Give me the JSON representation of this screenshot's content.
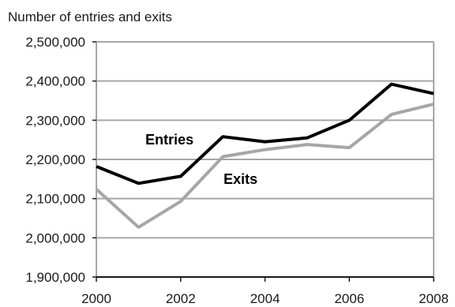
{
  "chart_data": {
    "type": "line",
    "title": "Number of entries and exits",
    "xlabel": "",
    "ylabel": "",
    "x": [
      2000,
      2001,
      2002,
      2003,
      2004,
      2005,
      2006,
      2007,
      2008
    ],
    "xlim": [
      2000,
      2008
    ],
    "xticks": [
      2000,
      2002,
      2004,
      2006,
      2008
    ],
    "xtick_labels": [
      "2000",
      "2002",
      "2004",
      "2006",
      "2008"
    ],
    "ylim": [
      1900000,
      2500000
    ],
    "yticks": [
      1900000,
      2000000,
      2100000,
      2200000,
      2300000,
      2400000,
      2500000
    ],
    "ytick_labels": [
      "1,900,000",
      "2,000,000",
      "2,100,000",
      "2,200,000",
      "2,300,000",
      "2,400,000",
      "2,500,000"
    ],
    "grid": "horizontal",
    "series": [
      {
        "name": "Entries",
        "color": "#000000",
        "values": [
          2182000,
          2139000,
          2157000,
          2258000,
          2245000,
          2255000,
          2300000,
          2392000,
          2368000
        ]
      },
      {
        "name": "Exits",
        "color": "#a6a6a6",
        "values": [
          2124000,
          2027000,
          2093000,
          2207000,
          2225000,
          2238000,
          2230000,
          2315000,
          2341000
        ]
      }
    ]
  }
}
